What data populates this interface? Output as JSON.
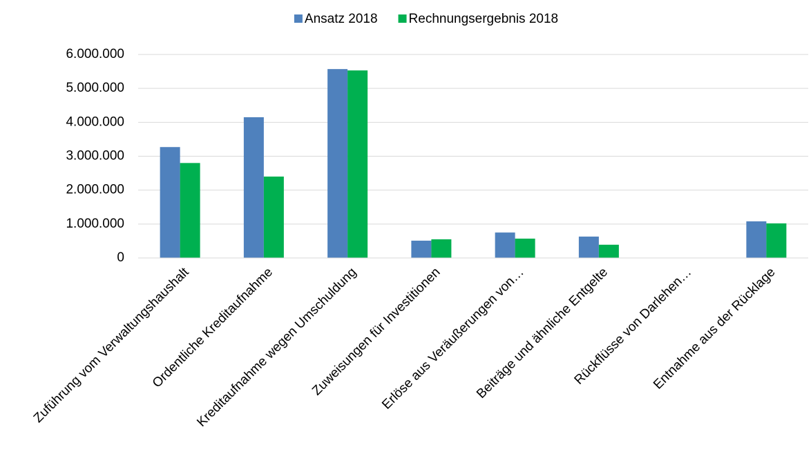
{
  "chart_data": {
    "type": "bar",
    "categories": [
      "Zuführung vom Verwaltungshaushalt",
      "Ordentliche Kreditaufnahme",
      "Kreditaufnahme wegen Umschuldung",
      "Zuweisungen für Investitionen",
      "Erlöse aus Veräußerungen von…",
      "Beiträge und ähnliche Entgelte",
      "Rückflüsse von Darlehen…",
      "Entnahme aus der Rücklage"
    ],
    "series": [
      {
        "name": "Ansatz 2018",
        "color": "#4f81bd",
        "values": [
          3270000,
          4150000,
          5570000,
          510000,
          750000,
          630000,
          0,
          1080000
        ]
      },
      {
        "name": "Rechnungsergebnis 2018",
        "color": "#00b050",
        "values": [
          2800000,
          2400000,
          5530000,
          550000,
          570000,
          390000,
          0,
          1020000
        ]
      }
    ],
    "ylim": [
      0,
      6000000
    ],
    "yticks": [
      0,
      {
        "value": 1000000,
        "label": "1.000.000"
      },
      {
        "value": 2000000,
        "label": "2.000.000"
      },
      {
        "value": 3000000,
        "label": "3.000.000"
      },
      {
        "value": 4000000,
        "label": "4.000.000"
      },
      {
        "value": 5000000,
        "label": "5.000.000"
      },
      {
        "value": 6000000,
        "label": "6.000.000"
      }
    ],
    "grid": true,
    "legend": "top"
  }
}
